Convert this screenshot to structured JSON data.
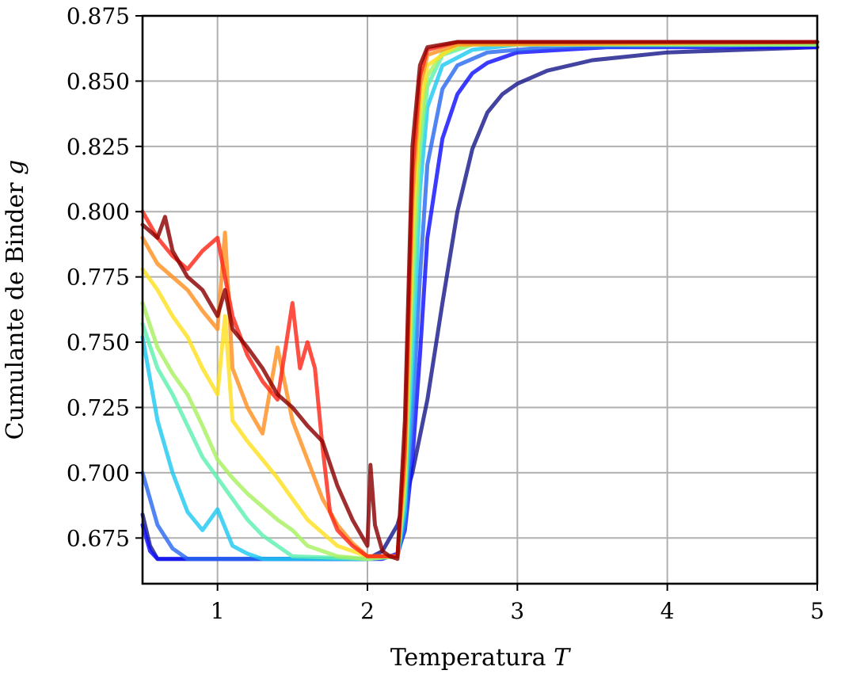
{
  "chart_data": {
    "type": "line",
    "title": "",
    "xlabel": "Temperatura",
    "xlabel_var": "T",
    "ylabel": "Cumulante de Binder",
    "ylabel_var": "g",
    "xlim": [
      0.5,
      5
    ],
    "ylim": [
      0.6575,
      0.875
    ],
    "xticks": [
      1,
      2,
      3,
      4,
      5
    ],
    "xtick_labels": [
      "1",
      "2",
      "3",
      "4",
      "5"
    ],
    "yticks": [
      0.675,
      0.7,
      0.725,
      0.75,
      0.775,
      0.8,
      0.825,
      0.85,
      0.875
    ],
    "ytick_labels": [
      "0.675",
      "0.700",
      "0.725",
      "0.750",
      "0.775",
      "0.800",
      "0.825",
      "0.850",
      "0.875"
    ],
    "grid": true,
    "legend": false,
    "series": [
      {
        "color": "#1a1a8c",
        "x": [
          0.5,
          0.55,
          0.6,
          1.5,
          2.0,
          2.1,
          2.2,
          2.3,
          2.4,
          2.5,
          2.6,
          2.7,
          2.8,
          2.9,
          3.0,
          3.2,
          3.5,
          4.0,
          4.5,
          5.0
        ],
        "y": [
          0.684,
          0.672,
          0.667,
          0.667,
          0.667,
          0.67,
          0.68,
          0.7,
          0.728,
          0.765,
          0.8,
          0.824,
          0.838,
          0.845,
          0.849,
          0.854,
          0.858,
          0.861,
          0.862,
          0.863
        ]
      },
      {
        "color": "#1010ff",
        "x": [
          0.5,
          0.55,
          0.6,
          2.0,
          2.1,
          2.2,
          2.25,
          2.3,
          2.35,
          2.4,
          2.5,
          2.6,
          2.7,
          2.8,
          3.0,
          3.3,
          3.6,
          4.0,
          5.0
        ],
        "y": [
          0.68,
          0.67,
          0.667,
          0.667,
          0.667,
          0.669,
          0.678,
          0.705,
          0.745,
          0.79,
          0.828,
          0.845,
          0.853,
          0.857,
          0.861,
          0.862,
          0.863,
          0.863,
          0.863
        ]
      },
      {
        "color": "#2a6af0",
        "x": [
          0.5,
          0.6,
          0.7,
          0.8,
          1.0,
          2.0,
          2.2,
          2.25,
          2.3,
          2.35,
          2.4,
          2.5,
          2.6,
          2.8,
          3.2,
          5.0
        ],
        "y": [
          0.7,
          0.68,
          0.671,
          0.667,
          0.667,
          0.667,
          0.668,
          0.68,
          0.72,
          0.775,
          0.818,
          0.847,
          0.856,
          0.861,
          0.863,
          0.864
        ]
      },
      {
        "color": "#20c8f0",
        "x": [
          0.5,
          0.6,
          0.7,
          0.8,
          0.9,
          1.0,
          1.1,
          1.2,
          1.3,
          2.0,
          2.2,
          2.25,
          2.3,
          2.35,
          2.4,
          2.5,
          2.7,
          3.0,
          5.0
        ],
        "y": [
          0.752,
          0.72,
          0.7,
          0.685,
          0.678,
          0.686,
          0.672,
          0.669,
          0.667,
          0.667,
          0.668,
          0.685,
          0.74,
          0.808,
          0.84,
          0.856,
          0.862,
          0.864,
          0.864
        ]
      },
      {
        "color": "#5ef0b0",
        "x": [
          0.5,
          0.6,
          0.7,
          0.8,
          0.9,
          1.0,
          1.1,
          1.2,
          1.3,
          1.5,
          2.0,
          2.2,
          2.25,
          2.3,
          2.35,
          2.4,
          2.5,
          2.7,
          5.0
        ],
        "y": [
          0.757,
          0.74,
          0.73,
          0.718,
          0.706,
          0.698,
          0.69,
          0.682,
          0.676,
          0.668,
          0.667,
          0.668,
          0.69,
          0.76,
          0.822,
          0.848,
          0.86,
          0.864,
          0.864
        ]
      },
      {
        "color": "#a8f060",
        "x": [
          0.5,
          0.6,
          0.7,
          0.8,
          0.9,
          1.0,
          1.1,
          1.2,
          1.3,
          1.4,
          1.5,
          1.6,
          1.8,
          2.0,
          2.2,
          2.25,
          2.3,
          2.35,
          2.4,
          2.5,
          2.7,
          5.0
        ],
        "y": [
          0.765,
          0.748,
          0.738,
          0.73,
          0.718,
          0.705,
          0.698,
          0.692,
          0.687,
          0.682,
          0.678,
          0.672,
          0.668,
          0.667,
          0.668,
          0.695,
          0.775,
          0.83,
          0.852,
          0.861,
          0.864,
          0.864
        ]
      },
      {
        "color": "#ffe020",
        "x": [
          0.5,
          0.6,
          0.7,
          0.8,
          0.9,
          1.0,
          1.05,
          1.1,
          1.2,
          1.3,
          1.4,
          1.5,
          1.6,
          1.8,
          2.0,
          2.2,
          2.25,
          2.3,
          2.35,
          2.4,
          2.6,
          5.0
        ],
        "y": [
          0.778,
          0.77,
          0.76,
          0.752,
          0.74,
          0.73,
          0.76,
          0.72,
          0.712,
          0.705,
          0.698,
          0.69,
          0.682,
          0.672,
          0.668,
          0.668,
          0.7,
          0.792,
          0.84,
          0.856,
          0.864,
          0.865
        ]
      },
      {
        "color": "#ff9020",
        "x": [
          0.5,
          0.6,
          0.7,
          0.8,
          0.9,
          1.0,
          1.05,
          1.1,
          1.2,
          1.3,
          1.4,
          1.5,
          1.6,
          1.7,
          1.8,
          1.9,
          2.0,
          2.2,
          2.25,
          2.3,
          2.35,
          2.4,
          2.6,
          5.0
        ],
        "y": [
          0.79,
          0.78,
          0.775,
          0.77,
          0.762,
          0.755,
          0.792,
          0.74,
          0.725,
          0.715,
          0.748,
          0.72,
          0.705,
          0.69,
          0.68,
          0.673,
          0.668,
          0.668,
          0.705,
          0.805,
          0.848,
          0.86,
          0.864,
          0.865
        ]
      },
      {
        "color": "#ff2818",
        "x": [
          0.5,
          0.6,
          0.7,
          0.8,
          0.9,
          1.0,
          1.05,
          1.1,
          1.2,
          1.3,
          1.4,
          1.5,
          1.55,
          1.6,
          1.65,
          1.7,
          1.75,
          1.8,
          1.9,
          2.0,
          2.2,
          2.25,
          2.3,
          2.35,
          2.4,
          2.6,
          5.0
        ],
        "y": [
          0.8,
          0.79,
          0.783,
          0.778,
          0.785,
          0.79,
          0.775,
          0.76,
          0.745,
          0.735,
          0.728,
          0.765,
          0.74,
          0.75,
          0.74,
          0.71,
          0.685,
          0.678,
          0.672,
          0.668,
          0.668,
          0.71,
          0.815,
          0.852,
          0.862,
          0.865,
          0.865
        ]
      },
      {
        "color": "#8b0000",
        "x": [
          0.5,
          0.6,
          0.65,
          0.7,
          0.8,
          0.9,
          1.0,
          1.05,
          1.1,
          1.2,
          1.3,
          1.4,
          1.5,
          1.6,
          1.7,
          1.8,
          1.9,
          2.0,
          2.02,
          2.05,
          2.1,
          2.15,
          2.2,
          2.25,
          2.3,
          2.35,
          2.4,
          2.6,
          5.0
        ],
        "y": [
          0.795,
          0.79,
          0.798,
          0.785,
          0.775,
          0.77,
          0.76,
          0.77,
          0.755,
          0.748,
          0.74,
          0.73,
          0.725,
          0.718,
          0.712,
          0.695,
          0.682,
          0.672,
          0.703,
          0.68,
          0.67,
          0.668,
          0.667,
          0.72,
          0.825,
          0.856,
          0.863,
          0.865,
          0.865
        ]
      }
    ]
  }
}
